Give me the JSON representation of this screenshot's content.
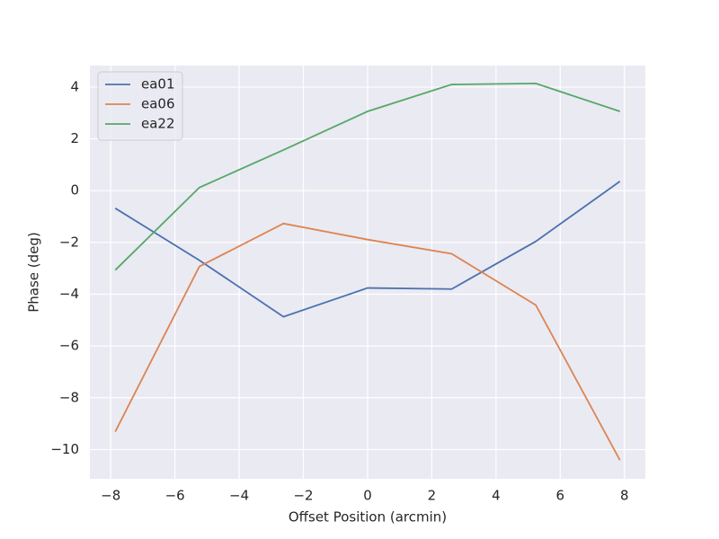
{
  "chart_data": {
    "type": "line",
    "xlabel": "Offset Position (arcmin)",
    "ylabel": "Phase (deg)",
    "x": [
      -7.86,
      -5.24,
      -2.62,
      0,
      2.62,
      5.24,
      7.86
    ],
    "series": [
      {
        "name": "ea01",
        "color": "#4c72b0",
        "values": [
          -0.68,
          -2.69,
          -4.87,
          -3.76,
          -3.8,
          -1.96,
          0.36
        ]
      },
      {
        "name": "ea06",
        "color": "#dd8452",
        "values": [
          -9.31,
          -2.93,
          -1.27,
          -1.89,
          -2.44,
          -4.42,
          -10.41
        ]
      },
      {
        "name": "ea22",
        "color": "#55a868",
        "values": [
          -3.07,
          0.12,
          1.57,
          3.06,
          4.1,
          4.14,
          3.06
        ]
      }
    ],
    "xlim": [
      -8.65,
      8.65
    ],
    "xticks": [
      {
        "value": -8,
        "label": "−8"
      },
      {
        "value": -6,
        "label": "−6"
      },
      {
        "value": -4,
        "label": "−4"
      },
      {
        "value": -2,
        "label": "−2"
      },
      0,
      2,
      4,
      6,
      8
    ],
    "ylim": [
      -11.13,
      4.83
    ],
    "yticks": [
      {
        "value": -10,
        "label": "−10"
      },
      {
        "value": -8,
        "label": "−8"
      },
      {
        "value": -6,
        "label": "−6"
      },
      {
        "value": -4,
        "label": "−4"
      },
      {
        "value": -2,
        "label": "−2"
      },
      0,
      2,
      4
    ],
    "grid": true,
    "legend": "upper-left"
  }
}
